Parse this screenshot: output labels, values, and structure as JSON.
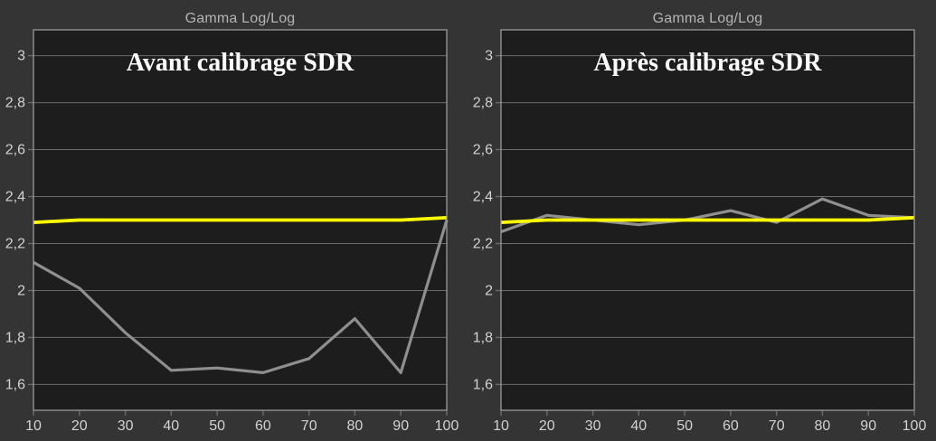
{
  "theme": {
    "outer_bg": "#343434",
    "plot_bg": "#1d1d1d",
    "grid": "#6b6b6b",
    "border": "#9a9a9a",
    "tick_text": "#d2d2d2",
    "title_text": "#b4b4b4",
    "annotation_text": "#ffffff",
    "target_color": "#ffff00",
    "measured_color": "#8f8f8f"
  },
  "chart_data": [
    {
      "type": "line",
      "title": "Gamma Log/Log",
      "annotation": "Avant calibrage SDR",
      "xlim": [
        10,
        100
      ],
      "ylim": [
        1.49,
        3.11
      ],
      "x": [
        10,
        20,
        30,
        40,
        50,
        60,
        70,
        80,
        90,
        100
      ],
      "x_ticks": [
        {
          "value": 10,
          "label": "10"
        },
        {
          "value": 20,
          "label": "20"
        },
        {
          "value": 30,
          "label": "30"
        },
        {
          "value": 40,
          "label": "40"
        },
        {
          "value": 50,
          "label": "50"
        },
        {
          "value": 60,
          "label": "60"
        },
        {
          "value": 70,
          "label": "70"
        },
        {
          "value": 80,
          "label": "80"
        },
        {
          "value": 90,
          "label": "90"
        },
        {
          "value": 100,
          "label": "100"
        }
      ],
      "y_ticks": [
        {
          "value": 3.0,
          "label": "3"
        },
        {
          "value": 2.8,
          "label": "2,8"
        },
        {
          "value": 2.6,
          "label": "2,6"
        },
        {
          "value": 2.4,
          "label": "2,4"
        },
        {
          "value": 2.2,
          "label": "2,2"
        },
        {
          "value": 2.0,
          "label": "2"
        },
        {
          "value": 1.8,
          "label": "1,8"
        },
        {
          "value": 1.6,
          "label": "1,6"
        }
      ],
      "series": [
        {
          "name": "measured-gamma",
          "color": "#8f8f8f",
          "width": 3.2,
          "values": [
            2.12,
            2.01,
            1.82,
            1.66,
            1.67,
            1.65,
            1.71,
            1.88,
            1.65,
            2.3
          ]
        },
        {
          "name": "target-gamma",
          "color": "#ffff00",
          "width": 3.8,
          "values": [
            2.29,
            2.3,
            2.3,
            2.3,
            2.3,
            2.3,
            2.3,
            2.3,
            2.3,
            2.31
          ]
        }
      ]
    },
    {
      "type": "line",
      "title": "Gamma Log/Log",
      "annotation": "Après calibrage SDR",
      "xlim": [
        10,
        100
      ],
      "ylim": [
        1.49,
        3.11
      ],
      "x": [
        10,
        20,
        30,
        40,
        50,
        60,
        70,
        80,
        90,
        100
      ],
      "x_ticks": [
        {
          "value": 10,
          "label": "10"
        },
        {
          "value": 20,
          "label": "20"
        },
        {
          "value": 30,
          "label": "30"
        },
        {
          "value": 40,
          "label": "40"
        },
        {
          "value": 50,
          "label": "50"
        },
        {
          "value": 60,
          "label": "60"
        },
        {
          "value": 70,
          "label": "70"
        },
        {
          "value": 80,
          "label": "80"
        },
        {
          "value": 90,
          "label": "90"
        },
        {
          "value": 100,
          "label": "100"
        }
      ],
      "y_ticks": [
        {
          "value": 3.0,
          "label": "3"
        },
        {
          "value": 2.8,
          "label": "2,8"
        },
        {
          "value": 2.6,
          "label": "2,6"
        },
        {
          "value": 2.4,
          "label": "2,4"
        },
        {
          "value": 2.2,
          "label": "2,2"
        },
        {
          "value": 2.0,
          "label": "2"
        },
        {
          "value": 1.8,
          "label": "1,8"
        },
        {
          "value": 1.6,
          "label": "1,6"
        }
      ],
      "series": [
        {
          "name": "measured-gamma",
          "color": "#8f8f8f",
          "width": 3.2,
          "values": [
            2.25,
            2.32,
            2.3,
            2.28,
            2.3,
            2.34,
            2.29,
            2.39,
            2.32,
            2.31
          ]
        },
        {
          "name": "target-gamma",
          "color": "#ffff00",
          "width": 3.8,
          "values": [
            2.29,
            2.3,
            2.3,
            2.3,
            2.3,
            2.3,
            2.3,
            2.3,
            2.3,
            2.31
          ]
        }
      ]
    }
  ]
}
